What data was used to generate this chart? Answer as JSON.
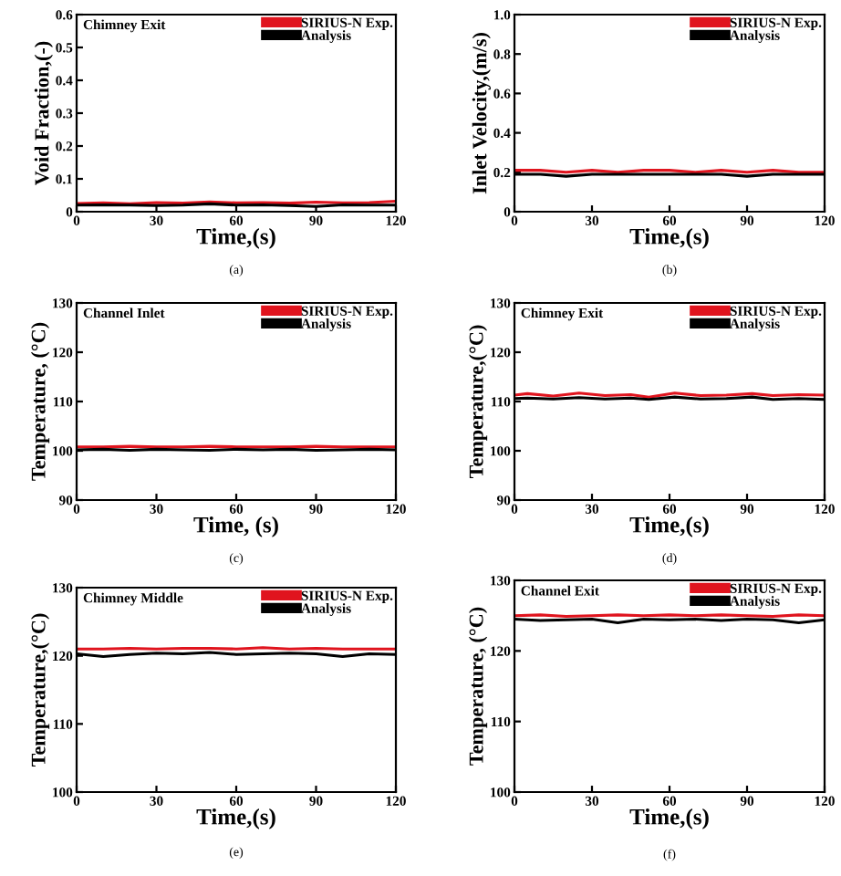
{
  "chart_data": [
    {
      "type": "line",
      "title": "Chimney Exit",
      "xlabel": "Time,(s)",
      "ylabel": "Void Fraction,(-)",
      "annotations": [
        "(a)"
      ],
      "legend": "top right",
      "grid": false,
      "xlim": [
        0,
        120
      ],
      "xticks": [
        0,
        30,
        60,
        90,
        120
      ],
      "ylim": [
        0,
        0.6
      ],
      "yticks": [
        0,
        0.1,
        0.2,
        0.3,
        0.4,
        0.5,
        0.6
      ],
      "x": [
        0,
        10,
        20,
        30,
        40,
        50,
        60,
        70,
        80,
        90,
        100,
        110,
        120
      ],
      "series": [
        {
          "name": "SIRIUS-N Exp.",
          "color": "#e0141e",
          "values": [
            0.025,
            0.027,
            0.024,
            0.028,
            0.026,
            0.03,
            0.027,
            0.028,
            0.026,
            0.029,
            0.027,
            0.028,
            0.032
          ]
        },
        {
          "name": "Analysis",
          "color": "#000000",
          "values": [
            0.02,
            0.021,
            0.02,
            0.019,
            0.02,
            0.024,
            0.02,
            0.021,
            0.019,
            0.016,
            0.021,
            0.02,
            0.02
          ]
        }
      ]
    },
    {
      "type": "line",
      "xlabel": "Time,(s)",
      "ylabel": "Inlet Velocity,(m/s)",
      "annotations": [
        "(b)"
      ],
      "legend": "top right",
      "grid": false,
      "xlim": [
        0,
        120
      ],
      "xticks": [
        0,
        30,
        60,
        90,
        120
      ],
      "ylim": [
        0,
        1.0
      ],
      "yticks": [
        {
          "value": 0,
          "label": "0"
        },
        0.2,
        0.4,
        0.6,
        0.8,
        {
          "value": 1.0,
          "label": "1.0"
        }
      ],
      "x": [
        0,
        10,
        20,
        30,
        40,
        50,
        60,
        70,
        80,
        90,
        100,
        110,
        120
      ],
      "series": [
        {
          "name": "SIRIUS-N Exp.",
          "color": "#e0141e",
          "values": [
            0.21,
            0.21,
            0.2,
            0.21,
            0.2,
            0.21,
            0.21,
            0.2,
            0.21,
            0.2,
            0.21,
            0.2,
            0.2
          ]
        },
        {
          "name": "Analysis",
          "color": "#000000",
          "values": [
            0.19,
            0.19,
            0.18,
            0.19,
            0.19,
            0.19,
            0.19,
            0.19,
            0.19,
            0.18,
            0.19,
            0.19,
            0.19
          ]
        }
      ]
    },
    {
      "type": "line",
      "title": "Channel Inlet",
      "xlabel": "Time, (s)",
      "ylabel": "Temperature, (°C)",
      "annotations": [
        "(c)"
      ],
      "legend": "top right",
      "grid": false,
      "xlim": [
        0,
        120
      ],
      "xticks": [
        0,
        30,
        60,
        90,
        120
      ],
      "ylim": [
        90,
        130
      ],
      "yticks": [
        90,
        100,
        110,
        120,
        130
      ],
      "x": [
        0,
        10,
        20,
        30,
        40,
        50,
        60,
        70,
        80,
        90,
        100,
        110,
        120
      ],
      "series": [
        {
          "name": "SIRIUS-N Exp.",
          "color": "#e0141e",
          "values": [
            100.8,
            100.8,
            100.9,
            100.8,
            100.8,
            100.9,
            100.8,
            100.8,
            100.8,
            100.9,
            100.8,
            100.8,
            100.8
          ]
        },
        {
          "name": "Analysis",
          "color": "#000000",
          "values": [
            100.2,
            100.3,
            100.1,
            100.3,
            100.2,
            100.1,
            100.3,
            100.2,
            100.3,
            100.1,
            100.2,
            100.3,
            100.2
          ]
        }
      ]
    },
    {
      "type": "line",
      "title": "Chimney Exit",
      "xlabel": "Time,(s)",
      "ylabel": "Temperature,(°C)",
      "annotations": [
        "(d)"
      ],
      "legend": "top right",
      "grid": false,
      "xlim": [
        0,
        120
      ],
      "xticks": [
        0,
        30,
        60,
        90,
        120
      ],
      "ylim": [
        90,
        130
      ],
      "yticks": [
        90,
        100,
        110,
        120,
        130
      ],
      "x": [
        0,
        5,
        15,
        25,
        35,
        45,
        52,
        62,
        72,
        82,
        92,
        100,
        110,
        120
      ],
      "series": [
        {
          "name": "SIRIUS-N Exp.",
          "color": "#e0141e",
          "values": [
            111.3,
            111.6,
            111.1,
            111.7,
            111.2,
            111.4,
            110.9,
            111.7,
            111.2,
            111.3,
            111.6,
            111.2,
            111.4,
            111.3
          ]
        },
        {
          "name": "Analysis",
          "color": "#000000",
          "values": [
            110.6,
            110.7,
            110.5,
            110.8,
            110.5,
            110.7,
            110.4,
            110.9,
            110.5,
            110.6,
            110.9,
            110.4,
            110.6,
            110.4
          ]
        }
      ]
    },
    {
      "type": "line",
      "title": "Chimney Middle",
      "xlabel": "Time,(s)",
      "ylabel": "Temperature,(°C)",
      "annotations": [
        "(e)"
      ],
      "legend": "top right",
      "grid": false,
      "xlim": [
        0,
        120
      ],
      "xticks": [
        0,
        30,
        60,
        90,
        120
      ],
      "ylim": [
        100,
        130
      ],
      "yticks": [
        100,
        110,
        120,
        130
      ],
      "x": [
        0,
        10,
        20,
        30,
        40,
        50,
        60,
        70,
        80,
        90,
        100,
        110,
        120
      ],
      "series": [
        {
          "name": "SIRIUS-N Exp.",
          "color": "#e0141e",
          "values": [
            121.0,
            121.0,
            121.1,
            121.0,
            121.1,
            121.1,
            121.0,
            121.2,
            121.0,
            121.1,
            121.0,
            121.0,
            121.0
          ]
        },
        {
          "name": "Analysis",
          "color": "#000000",
          "values": [
            120.3,
            119.9,
            120.2,
            120.4,
            120.3,
            120.5,
            120.2,
            120.3,
            120.4,
            120.3,
            119.9,
            120.3,
            120.2
          ]
        }
      ]
    },
    {
      "type": "line",
      "title": "Channel Exit",
      "xlabel": "Time,(s)",
      "ylabel": "Temperature, (°C)",
      "annotations": [
        "(f)"
      ],
      "legend": "top right",
      "grid": false,
      "xlim": [
        0,
        120
      ],
      "xticks": [
        0,
        30,
        60,
        90,
        120
      ],
      "ylim": [
        100,
        130
      ],
      "yticks": [
        100,
        110,
        120,
        130
      ],
      "x": [
        0,
        10,
        20,
        30,
        40,
        50,
        60,
        70,
        80,
        90,
        100,
        110,
        120
      ],
      "series": [
        {
          "name": "SIRIUS-N Exp.",
          "color": "#e0141e",
          "values": [
            125.0,
            125.1,
            124.9,
            125.0,
            125.1,
            125.0,
            125.1,
            125.0,
            125.1,
            125.0,
            124.9,
            125.1,
            125.0
          ]
        },
        {
          "name": "Analysis",
          "color": "#000000",
          "values": [
            124.5,
            124.3,
            124.4,
            124.5,
            124.0,
            124.5,
            124.4,
            124.5,
            124.3,
            124.5,
            124.4,
            124.0,
            124.4
          ]
        }
      ]
    }
  ]
}
